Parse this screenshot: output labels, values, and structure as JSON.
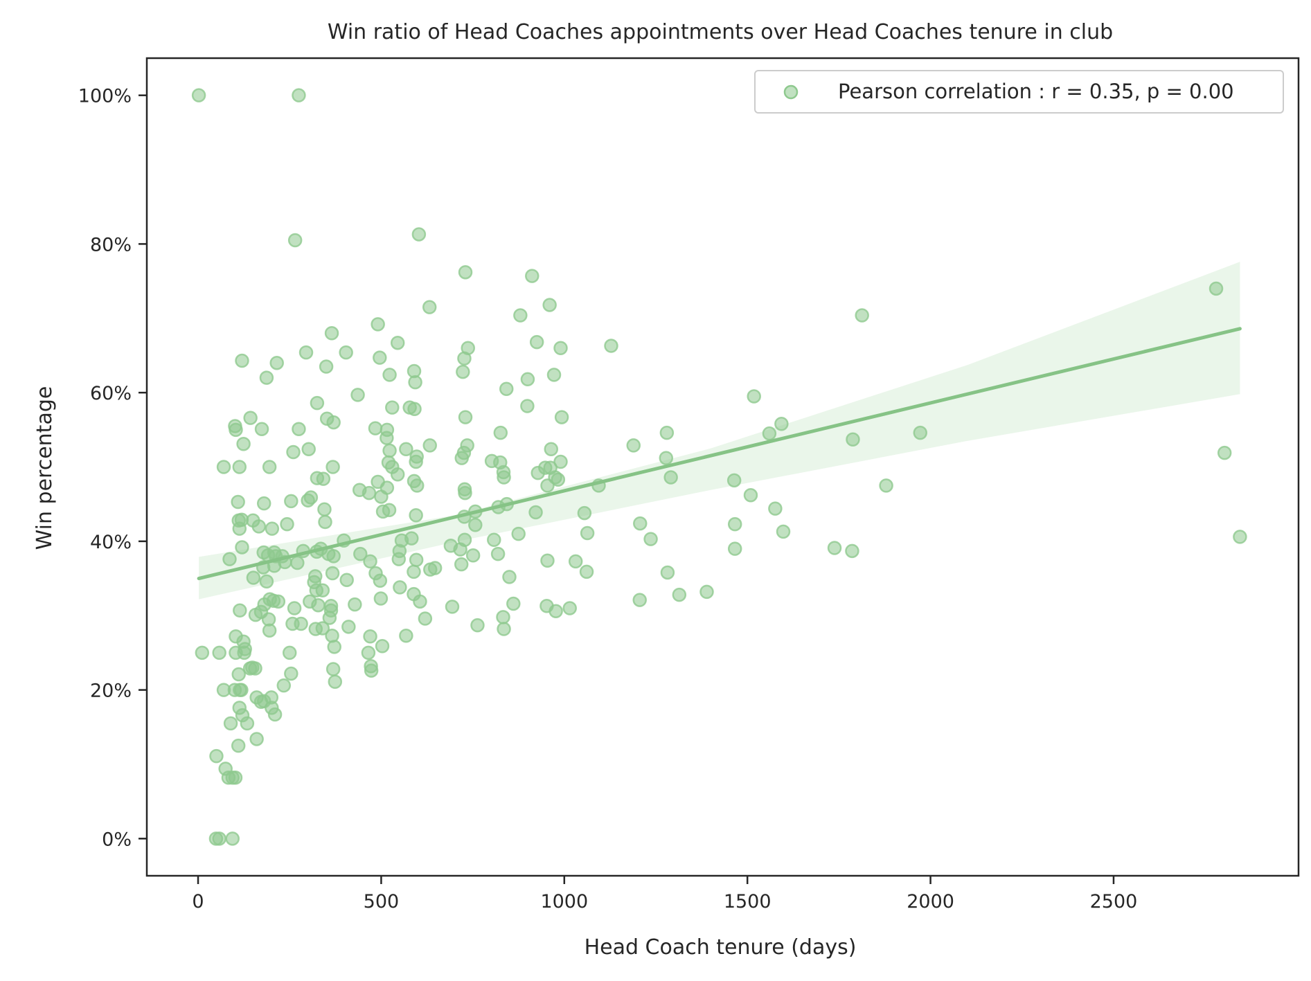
{
  "colors": {
    "point": "#8ec98e",
    "line": "#86c386",
    "band": "#d9eed9",
    "axis": "#262626"
  },
  "chart_data": {
    "type": "scatter",
    "title": "Win ratio of Head Coaches appointments over Head Coaches tenure in club",
    "xlabel": "Head Coach tenure (days)",
    "ylabel": "Win percentage",
    "xlim": [
      -140,
      3005
    ],
    "ylim": [
      -5,
      105
    ],
    "xticks": [
      0,
      500,
      1000,
      1500,
      2000,
      2500
    ],
    "xtick_labels": [
      "0",
      "500",
      "1000",
      "1500",
      "2000",
      "2500"
    ],
    "yticks": [
      0,
      20,
      40,
      60,
      80,
      100
    ],
    "ytick_labels": [
      "0%",
      "20%",
      "40%",
      "60%",
      "80%",
      "100%"
    ],
    "grid": false,
    "legend_position": "top-right",
    "series": [
      {
        "name": "Pearson correlation : r = 0.35, p = 0.00",
        "points": [
          [
            2,
            100
          ],
          [
            275,
            100
          ],
          [
            265,
            80.5
          ],
          [
            603,
            81.3
          ],
          [
            730,
            76.2
          ],
          [
            912,
            75.7
          ],
          [
            2780,
            74
          ],
          [
            1813,
            70.4
          ],
          [
            960,
            71.8
          ],
          [
            632,
            71.5
          ],
          [
            880,
            70.4
          ],
          [
            1128,
            66.3
          ],
          [
            990,
            66
          ],
          [
            925,
            66.8
          ],
          [
            737,
            66
          ],
          [
            545,
            66.7
          ],
          [
            491,
            69.2
          ],
          [
            365,
            68
          ],
          [
            404,
            65.4
          ],
          [
            295,
            65.4
          ],
          [
            215,
            64
          ],
          [
            120,
            64.3
          ],
          [
            187,
            62
          ],
          [
            727,
            64.6
          ],
          [
            496,
            64.7
          ],
          [
            350,
            63.5
          ],
          [
            590,
            62.9
          ],
          [
            523,
            62.4
          ],
          [
            723,
            62.8
          ],
          [
            972,
            62.4
          ],
          [
            593,
            61.4
          ],
          [
            900,
            61.8
          ],
          [
            842,
            60.5
          ],
          [
            436,
            59.7
          ],
          [
            1518,
            59.5
          ],
          [
            325,
            58.6
          ],
          [
            591,
            57.8
          ],
          [
            530,
            58
          ],
          [
            578,
            58
          ],
          [
            899,
            58.2
          ],
          [
            352,
            56.5
          ],
          [
            370,
            56
          ],
          [
            143,
            56.6
          ],
          [
            993,
            56.7
          ],
          [
            730,
            56.7
          ],
          [
            1593,
            55.8
          ],
          [
            1788,
            53.7
          ],
          [
            1972,
            54.6
          ],
          [
            1560,
            54.5
          ],
          [
            1280,
            54.6
          ],
          [
            826,
            54.6
          ],
          [
            101,
            55.5
          ],
          [
            103,
            55
          ],
          [
            174,
            55.1
          ],
          [
            275,
            55.1
          ],
          [
            484,
            55.2
          ],
          [
            516,
            55
          ],
          [
            515,
            53.9
          ],
          [
            568,
            52.4
          ],
          [
            633,
            52.9
          ],
          [
            735,
            52.9
          ],
          [
            964,
            52.4
          ],
          [
            726,
            51.9
          ],
          [
            1189,
            52.9
          ],
          [
            2803,
            51.9
          ],
          [
            124,
            53.1
          ],
          [
            260,
            52
          ],
          [
            302,
            52.4
          ],
          [
            523,
            52.2
          ],
          [
            520,
            50.6
          ],
          [
            595,
            50.7
          ],
          [
            597,
            51.4
          ],
          [
            720,
            51.2
          ],
          [
            802,
            50.8
          ],
          [
            1278,
            51.2
          ],
          [
            113,
            50
          ],
          [
            70,
            50
          ],
          [
            195,
            50
          ],
          [
            368,
            50
          ],
          [
            530,
            50
          ],
          [
            545,
            49
          ],
          [
            825,
            50.6
          ],
          [
            834,
            49.3
          ],
          [
            835,
            48.6
          ],
          [
            928,
            49.2
          ],
          [
            962,
            49.9
          ],
          [
            948,
            49.9
          ],
          [
            990,
            50.7
          ],
          [
            983,
            48.3
          ],
          [
            975,
            48.6
          ],
          [
            1291,
            48.6
          ],
          [
            1464,
            48.2
          ],
          [
            1879,
            47.5
          ],
          [
            325,
            48.5
          ],
          [
            342,
            48.4
          ],
          [
            491,
            48
          ],
          [
            516,
            47.2
          ],
          [
            590,
            48.1
          ],
          [
            598,
            47.5
          ],
          [
            728,
            47
          ],
          [
            729,
            46.5
          ],
          [
            954,
            47.5
          ],
          [
            1094,
            47.5
          ],
          [
            1509,
            46.2
          ],
          [
            441,
            46.9
          ],
          [
            467,
            46.5
          ],
          [
            308,
            45.9
          ],
          [
            300,
            45.5
          ],
          [
            254,
            45.4
          ],
          [
            180,
            45.1
          ],
          [
            109,
            45.3
          ],
          [
            345,
            44.3
          ],
          [
            500,
            46
          ],
          [
            505,
            44
          ],
          [
            522,
            44.2
          ],
          [
            595,
            43.5
          ],
          [
            727,
            43.3
          ],
          [
            757,
            44
          ],
          [
            820,
            44.6
          ],
          [
            843,
            45
          ],
          [
            922,
            43.9
          ],
          [
            1055,
            43.8
          ],
          [
            1207,
            42.4
          ],
          [
            1466,
            42.3
          ],
          [
            1576,
            44.4
          ],
          [
            119,
            42.9
          ],
          [
            111,
            42.8
          ],
          [
            113,
            41.7
          ],
          [
            150,
            42.8
          ],
          [
            166,
            42
          ],
          [
            202,
            41.7
          ],
          [
            243,
            42.3
          ],
          [
            347,
            42.6
          ],
          [
            757,
            42.2
          ],
          [
            1063,
            41.1
          ],
          [
            1598,
            41.3
          ],
          [
            2845,
            40.6
          ],
          [
            1236,
            40.3
          ],
          [
            875,
            41
          ],
          [
            808,
            40.2
          ],
          [
            728,
            40.2
          ],
          [
            583,
            40.4
          ],
          [
            556,
            40.1
          ],
          [
            398,
            40.1
          ],
          [
            335,
            39
          ],
          [
            287,
            38.7
          ],
          [
            120,
            39.2
          ],
          [
            179,
            38.5
          ],
          [
            191,
            38.1
          ],
          [
            208,
            38.5
          ],
          [
            212,
            38
          ],
          [
            230,
            38
          ],
          [
            271,
            37.1
          ],
          [
            324,
            38.6
          ],
          [
            356,
            38.3
          ],
          [
            370,
            38
          ],
          [
            443,
            38.3
          ],
          [
            550,
            38.7
          ],
          [
            548,
            37.6
          ],
          [
            596,
            37.5
          ],
          [
            690,
            39.4
          ],
          [
            716,
            38.9
          ],
          [
            751,
            38.1
          ],
          [
            819,
            38.3
          ],
          [
            954,
            37.4
          ],
          [
            1031,
            37.3
          ],
          [
            1466,
            39
          ],
          [
            1738,
            39.1
          ],
          [
            1786,
            38.7
          ],
          [
            86,
            37.6
          ],
          [
            178,
            36.5
          ],
          [
            208,
            36.7
          ],
          [
            237,
            37.2
          ],
          [
            320,
            35.3
          ],
          [
            367,
            35.7
          ],
          [
            470,
            37.3
          ],
          [
            485,
            35.7
          ],
          [
            497,
            34.7
          ],
          [
            551,
            33.8
          ],
          [
            589,
            35.9
          ],
          [
            634,
            36.2
          ],
          [
            647,
            36.4
          ],
          [
            719,
            36.9
          ],
          [
            850,
            35.2
          ],
          [
            1061,
            35.9
          ],
          [
            1282,
            35.8
          ],
          [
            151,
            35.1
          ],
          [
            187,
            34.6
          ],
          [
            317,
            34.5
          ],
          [
            340,
            33.4
          ],
          [
            323,
            33.4
          ],
          [
            406,
            34.8
          ],
          [
            1389,
            33.2
          ],
          [
            1314,
            32.8
          ],
          [
            1206,
            32.1
          ],
          [
            977,
            30.6
          ],
          [
            952,
            31.3
          ],
          [
            1015,
            31
          ],
          [
            861,
            31.6
          ],
          [
            694,
            31.2
          ],
          [
            606,
            31.9
          ],
          [
            589,
            32.9
          ],
          [
            499,
            32.3
          ],
          [
            428,
            31.5
          ],
          [
            363,
            31.3
          ],
          [
            328,
            31.4
          ],
          [
            305,
            31.9
          ],
          [
            263,
            31
          ],
          [
            219,
            31.9
          ],
          [
            206,
            32
          ],
          [
            196,
            32.2
          ],
          [
            181,
            31.5
          ],
          [
            114,
            30.7
          ],
          [
            157,
            30.1
          ],
          [
            172,
            30.5
          ],
          [
            193,
            29.5
          ],
          [
            258,
            28.9
          ],
          [
            281,
            28.9
          ],
          [
            321,
            28.2
          ],
          [
            340,
            28.3
          ],
          [
            359,
            29.7
          ],
          [
            363,
            30.7
          ],
          [
            411,
            28.5
          ],
          [
            568,
            27.3
          ],
          [
            620,
            29.6
          ],
          [
            763,
            28.7
          ],
          [
            833,
            29.8
          ],
          [
            835,
            28.2
          ],
          [
            195,
            28
          ],
          [
            103,
            27.2
          ],
          [
            124,
            26.5
          ],
          [
            128,
            25.5
          ],
          [
            126,
            25
          ],
          [
            366,
            27.3
          ],
          [
            470,
            27.2
          ],
          [
            372,
            25.8
          ],
          [
            503,
            25.9
          ],
          [
            11,
            25
          ],
          [
            58,
            25
          ],
          [
            103,
            25
          ],
          [
            250,
            25
          ],
          [
            465,
            25
          ],
          [
            472,
            23.2
          ],
          [
            473,
            22.6
          ],
          [
            369,
            22.8
          ],
          [
            254,
            22.2
          ],
          [
            148,
            23
          ],
          [
            142,
            22.9
          ],
          [
            156,
            22.9
          ],
          [
            111,
            22.1
          ],
          [
            374,
            21.1
          ],
          [
            234,
            20.6
          ],
          [
            100,
            20
          ],
          [
            118,
            20
          ],
          [
            114,
            20
          ],
          [
            70,
            20
          ],
          [
            113,
            17.6
          ],
          [
            160,
            19
          ],
          [
            172,
            18.4
          ],
          [
            200,
            19
          ],
          [
            201,
            17.6
          ],
          [
            210,
            16.7
          ],
          [
            180,
            18.5
          ],
          [
            121,
            16.6
          ],
          [
            134,
            15.5
          ],
          [
            89,
            15.5
          ],
          [
            160,
            13.4
          ],
          [
            110,
            12.5
          ],
          [
            50,
            11.1
          ],
          [
            75,
            9.4
          ],
          [
            83,
            8.2
          ],
          [
            94,
            8.2
          ],
          [
            102,
            8.2
          ],
          [
            49,
            0
          ],
          [
            58,
            0
          ],
          [
            94,
            0
          ]
        ]
      }
    ],
    "regression": {
      "x_range": [
        2,
        2845
      ],
      "y_range": [
        35,
        68.6
      ],
      "ci_lower": [
        [
          2,
          32.2
        ],
        [
          700,
          39.9
        ],
        [
          1400,
          46.9
        ],
        [
          2100,
          53.5
        ],
        [
          2845,
          59.8
        ]
      ],
      "ci_upper": [
        [
          2,
          37.9
        ],
        [
          700,
          43.5
        ],
        [
          1400,
          52.5
        ],
        [
          2100,
          63.7
        ],
        [
          2845,
          77.6
        ]
      ]
    }
  }
}
